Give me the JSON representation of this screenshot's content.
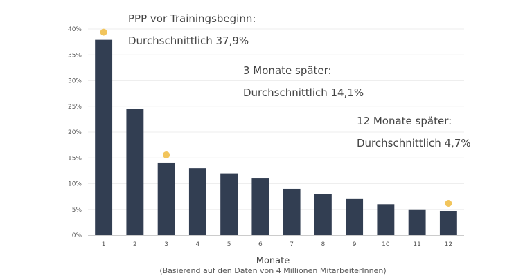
{
  "chart_data": {
    "type": "bar",
    "categories": [
      "1",
      "2",
      "3",
      "4",
      "5",
      "6",
      "7",
      "8",
      "9",
      "10",
      "11",
      "12"
    ],
    "values": [
      37.9,
      24.5,
      14.1,
      13.0,
      12.0,
      11.0,
      9.0,
      8.0,
      7.0,
      6.0,
      5.0,
      4.7
    ],
    "ylim": [
      0,
      40
    ],
    "yticks": [
      0,
      5,
      10,
      15,
      20,
      25,
      30,
      35,
      40
    ],
    "ytick_suffix": "%",
    "xlabel": "Monate",
    "note": "(Basierend auf den Daten von 4 Millionen MitarbeiterInnen)",
    "grid": true,
    "bar_color": "#323e52",
    "marker_color": "#f2c55c",
    "highlighted_months": [
      "1",
      "3",
      "12"
    ],
    "annotations": [
      {
        "line1": "PPP vor Trainingsbeginn:",
        "line2": "Durchschnittlich 37,9%"
      },
      {
        "line1": "3 Monate später:",
        "line2": "Durchschnittlich 14,1%"
      },
      {
        "line1": "12 Monate später:",
        "line2": "Durchschnittlich 4,7%"
      }
    ]
  }
}
